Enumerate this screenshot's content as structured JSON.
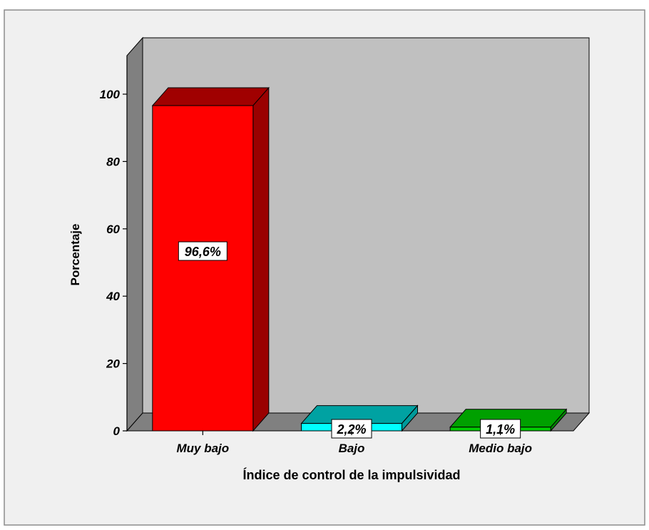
{
  "chart_data": {
    "type": "bar",
    "title": "",
    "xlabel": "Índice de control de la impulsividad",
    "ylabel": "Porcentaje",
    "categories": [
      "Muy bajo",
      "Bajo",
      "Medio bajo"
    ],
    "values": [
      96.6,
      2.2,
      1.1
    ],
    "data_labels": [
      "96,6%",
      "2,2%",
      "1,1%"
    ],
    "y_ticks": [
      "0",
      "20",
      "40",
      "60",
      "80",
      "100"
    ],
    "ylim": [
      0,
      100
    ],
    "grid": false,
    "legend": "none",
    "bar3d": true,
    "colors": {
      "bars": [
        {
          "front": "#ff0000",
          "top": "#a00000",
          "side": "#9a0000"
        },
        {
          "front": "#00ffff",
          "top": "#00a2a2",
          "side": "#009a9a"
        },
        {
          "front": "#00cc00",
          "top": "#00a000",
          "side": "#008a00"
        }
      ],
      "wall": "#c0c0c0",
      "wall_side": "#808080",
      "floor": "#808080",
      "page_bg": "#f0f0f0"
    }
  }
}
